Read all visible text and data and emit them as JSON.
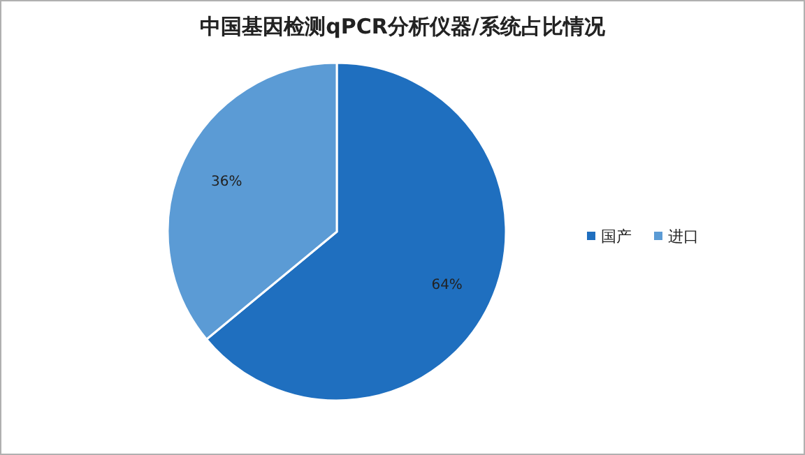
{
  "chart_data": {
    "type": "pie",
    "title": "中国基因检测qPCR分析仪器/系统占比情况",
    "categories": [
      "国产",
      "进口"
    ],
    "values": [
      64,
      36
    ],
    "colors": [
      "#1f6fbf",
      "#5b9bd5"
    ],
    "value_labels": [
      "64%",
      "36%"
    ],
    "legend": "right"
  }
}
